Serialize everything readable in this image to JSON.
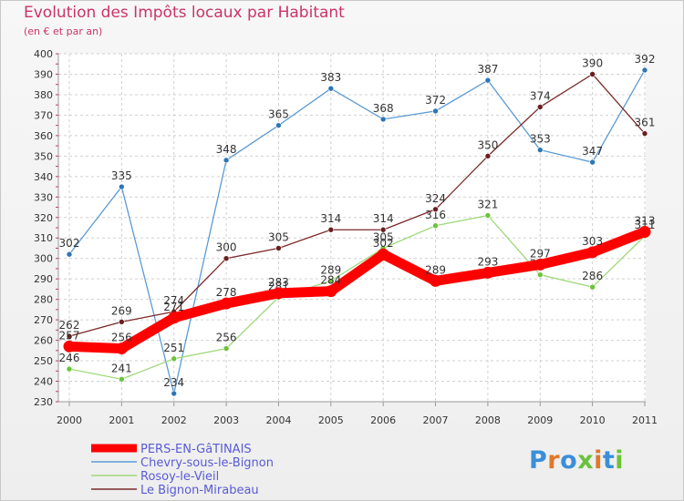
{
  "chart_data": {
    "type": "line",
    "title": "Evolution des Impôts locaux par Habitant",
    "subtitle": "(en € et par an)",
    "x": [
      "2000",
      "2001",
      "2002",
      "2003",
      "2004",
      "2005",
      "2006",
      "2007",
      "2008",
      "2009",
      "2010",
      "2011"
    ],
    "ylim": [
      230,
      400
    ],
    "yticks": [
      230,
      240,
      250,
      260,
      270,
      280,
      290,
      300,
      310,
      320,
      330,
      340,
      350,
      360,
      370,
      380,
      390,
      400
    ],
    "grid": true,
    "legend_position": "bottom-left",
    "series": [
      {
        "name": "Chevry-sous-le-Bignon",
        "color": "#5b9bd5",
        "marker": "#2e75b6",
        "values": [
          302,
          335,
          234,
          348,
          365,
          383,
          368,
          372,
          387,
          353,
          347,
          392
        ]
      },
      {
        "name": "Rosoy-le-Vieil",
        "color": "#9fd97a",
        "marker": "#6cc23a",
        "values": [
          246,
          241,
          251,
          256,
          281,
          289,
          305,
          316,
          321,
          292,
          286,
          311
        ]
      },
      {
        "name": "Le Bignon-Mirabeau",
        "color": "#7b2a2a",
        "marker": "#6a1f1f",
        "values": [
          262,
          269,
          274,
          300,
          305,
          314,
          314,
          324,
          350,
          374,
          390,
          361
        ]
      },
      {
        "name": "PERS-EN-GâTINAIS",
        "color": "#ff0000",
        "marker": "#ff0000",
        "thick": true,
        "values": [
          257,
          256,
          271,
          278,
          283,
          284,
          302,
          289,
          293,
          297,
          303,
          313
        ]
      }
    ],
    "legend_order": [
      3,
      0,
      1,
      2
    ]
  },
  "logo": {
    "text": "Proxiti",
    "colors": [
      "#3b8fd9",
      "#e0782a",
      "#3b8fd9",
      "#6cc23a",
      "#e0782a",
      "#3b8fd9",
      "#6cc23a"
    ]
  }
}
